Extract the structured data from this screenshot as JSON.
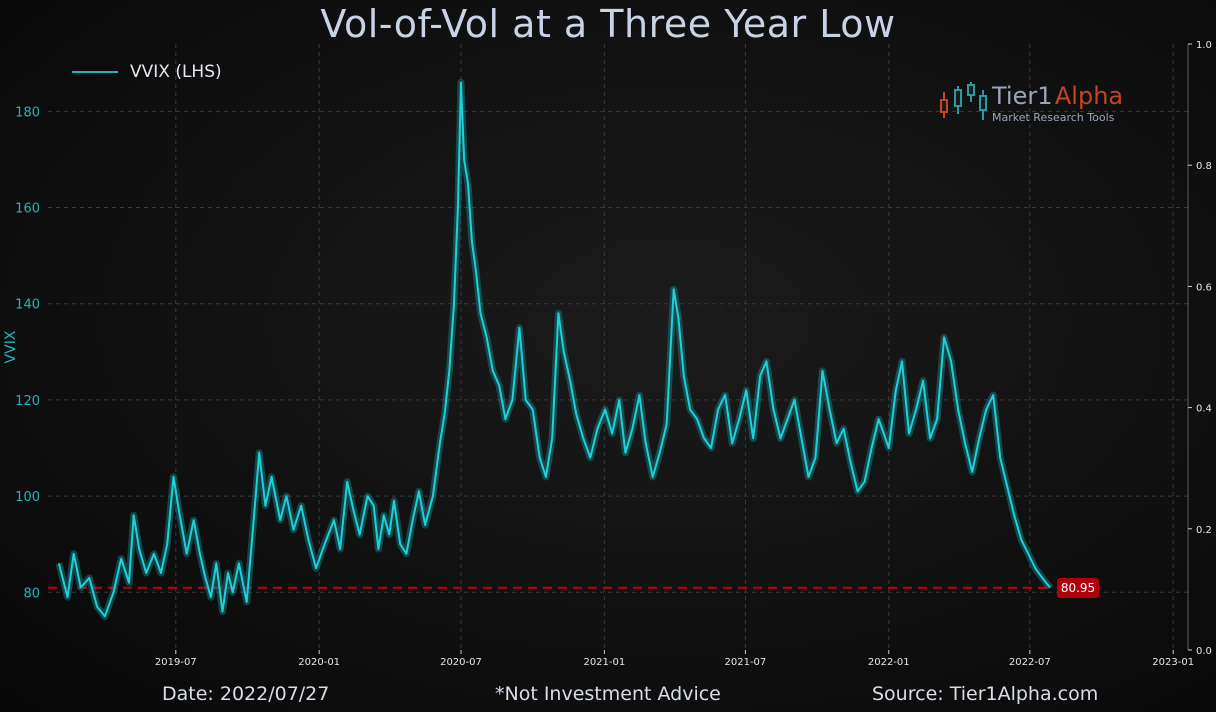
{
  "title": "Vol-of-Vol at a Three Year Low",
  "footer": {
    "date": "Date: 2022/07/27",
    "disclaimer": "*Not Investment Advice",
    "source": "Source: Tier1Alpha.com"
  },
  "logo": {
    "name_part1": "Tier1",
    "name_part2": "Alpha",
    "tagline": "Market  Research Tools"
  },
  "colors": {
    "line": "#1fd0d9",
    "glow": "#138a90",
    "axis_left": "#23b5bd",
    "threshold": "#c0000c",
    "badge": "#b0000b",
    "title": "#c8d3e6"
  },
  "chart_data": {
    "type": "line",
    "title": "Vol-of-Vol at a Three Year Low",
    "ylabel": "VVIX",
    "ylim": [
      68,
      194
    ],
    "right_ylim": [
      0.0,
      1.0
    ],
    "right_yticks": [
      "0.0",
      "0.2",
      "0.4",
      "0.6",
      "0.8",
      "1.0"
    ],
    "yticks": [
      80,
      100,
      120,
      140,
      160,
      180
    ],
    "xlim": [
      "2019-01-18",
      "2023-01-20"
    ],
    "xticks": [
      "2019-07",
      "2020-01",
      "2020-07",
      "2021-01",
      "2021-07",
      "2022-01",
      "2022-07",
      "2023-01"
    ],
    "grid": true,
    "legend": "top-left",
    "series": [
      {
        "name": "VVIX (LHS)",
        "points": [
          [
            "2019-02-01",
            86
          ],
          [
            "2019-02-12",
            79
          ],
          [
            "2019-02-20",
            88
          ],
          [
            "2019-03-01",
            81
          ],
          [
            "2019-03-12",
            83
          ],
          [
            "2019-03-22",
            77
          ],
          [
            "2019-04-01",
            75
          ],
          [
            "2019-04-12",
            80
          ],
          [
            "2019-04-22",
            87
          ],
          [
            "2019-05-02",
            82
          ],
          [
            "2019-05-08",
            96
          ],
          [
            "2019-05-15",
            89
          ],
          [
            "2019-05-24",
            84
          ],
          [
            "2019-06-03",
            88
          ],
          [
            "2019-06-12",
            84
          ],
          [
            "2019-06-20",
            90
          ],
          [
            "2019-06-28",
            104
          ],
          [
            "2019-07-05",
            97
          ],
          [
            "2019-07-15",
            88
          ],
          [
            "2019-07-24",
            95
          ],
          [
            "2019-08-01",
            88
          ],
          [
            "2019-08-08",
            83
          ],
          [
            "2019-08-15",
            79
          ],
          [
            "2019-08-22",
            86
          ],
          [
            "2019-08-30",
            76
          ],
          [
            "2019-09-06",
            84
          ],
          [
            "2019-09-12",
            80
          ],
          [
            "2019-09-20",
            86
          ],
          [
            "2019-09-30",
            78
          ],
          [
            "2019-10-08",
            93
          ],
          [
            "2019-10-16",
            109
          ],
          [
            "2019-10-24",
            98
          ],
          [
            "2019-11-01",
            104
          ],
          [
            "2019-11-12",
            95
          ],
          [
            "2019-11-20",
            100
          ],
          [
            "2019-11-29",
            93
          ],
          [
            "2019-12-09",
            98
          ],
          [
            "2019-12-18",
            91
          ],
          [
            "2019-12-28",
            85
          ],
          [
            "2020-01-08",
            90
          ],
          [
            "2020-01-20",
            95
          ],
          [
            "2020-01-28",
            89
          ],
          [
            "2020-02-06",
            103
          ],
          [
            "2020-02-14",
            97
          ],
          [
            "2020-02-22",
            92
          ],
          [
            "2020-03-03",
            100
          ],
          [
            "2020-03-11",
            98
          ],
          [
            "2020-03-17",
            89
          ],
          [
            "2020-03-24",
            96
          ],
          [
            "2020-03-31",
            92
          ],
          [
            "2020-04-06",
            99
          ],
          [
            "2020-04-14",
            90
          ],
          [
            "2020-04-22",
            88
          ],
          [
            "2020-04-30",
            95
          ],
          [
            "2020-05-08",
            101
          ],
          [
            "2020-05-16",
            94
          ],
          [
            "2020-05-26",
            100
          ],
          [
            "2020-06-04",
            111
          ],
          [
            "2020-06-10",
            117
          ],
          [
            "2020-06-16",
            126
          ],
          [
            "2020-06-22",
            140
          ],
          [
            "2020-06-27",
            160
          ],
          [
            "2020-07-01",
            186
          ],
          [
            "2020-07-05",
            170
          ],
          [
            "2020-07-10",
            165
          ],
          [
            "2020-07-15",
            153
          ],
          [
            "2020-07-20",
            147
          ],
          [
            "2020-07-26",
            138
          ],
          [
            "2020-08-03",
            133
          ],
          [
            "2020-08-11",
            126
          ],
          [
            "2020-08-19",
            123
          ],
          [
            "2020-08-27",
            116
          ],
          [
            "2020-09-05",
            120
          ],
          [
            "2020-09-14",
            135
          ],
          [
            "2020-09-22",
            120
          ],
          [
            "2020-10-01",
            118
          ],
          [
            "2020-10-10",
            108
          ],
          [
            "2020-10-18",
            104
          ],
          [
            "2020-10-26",
            112
          ],
          [
            "2020-11-03",
            138
          ],
          [
            "2020-11-10",
            130
          ],
          [
            "2020-11-18",
            124
          ],
          [
            "2020-11-26",
            117
          ],
          [
            "2020-12-05",
            112
          ],
          [
            "2020-12-14",
            108
          ],
          [
            "2020-12-23",
            114
          ],
          [
            "2021-01-02",
            118
          ],
          [
            "2021-01-11",
            113
          ],
          [
            "2021-01-20",
            120
          ],
          [
            "2021-01-28",
            109
          ],
          [
            "2021-02-06",
            114
          ],
          [
            "2021-02-15",
            121
          ],
          [
            "2021-02-23",
            111
          ],
          [
            "2021-03-04",
            104
          ],
          [
            "2021-03-13",
            109
          ],
          [
            "2021-03-22",
            115
          ],
          [
            "2021-03-31",
            143
          ],
          [
            "2021-04-06",
            137
          ],
          [
            "2021-04-13",
            125
          ],
          [
            "2021-04-21",
            118
          ],
          [
            "2021-04-30",
            116
          ],
          [
            "2021-05-09",
            112
          ],
          [
            "2021-05-18",
            110
          ],
          [
            "2021-05-27",
            118
          ],
          [
            "2021-06-05",
            121
          ],
          [
            "2021-06-14",
            111
          ],
          [
            "2021-06-23",
            116
          ],
          [
            "2021-07-02",
            122
          ],
          [
            "2021-07-11",
            112
          ],
          [
            "2021-07-20",
            125
          ],
          [
            "2021-07-28",
            128
          ],
          [
            "2021-08-06",
            118
          ],
          [
            "2021-08-15",
            112
          ],
          [
            "2021-08-24",
            116
          ],
          [
            "2021-09-02",
            120
          ],
          [
            "2021-09-11",
            112
          ],
          [
            "2021-09-20",
            104
          ],
          [
            "2021-09-29",
            108
          ],
          [
            "2021-10-08",
            126
          ],
          [
            "2021-10-17",
            118
          ],
          [
            "2021-10-26",
            111
          ],
          [
            "2021-11-04",
            114
          ],
          [
            "2021-11-13",
            107
          ],
          [
            "2021-11-22",
            101
          ],
          [
            "2021-12-01",
            103
          ],
          [
            "2021-12-10",
            110
          ],
          [
            "2021-12-19",
            116
          ],
          [
            "2022-01-01",
            110
          ],
          [
            "2022-01-10",
            122
          ],
          [
            "2022-01-18",
            128
          ],
          [
            "2022-01-27",
            113
          ],
          [
            "2022-02-05",
            118
          ],
          [
            "2022-02-14",
            124
          ],
          [
            "2022-02-23",
            112
          ],
          [
            "2022-03-04",
            116
          ],
          [
            "2022-03-13",
            133
          ],
          [
            "2022-03-22",
            128
          ],
          [
            "2022-03-31",
            118
          ],
          [
            "2022-04-09",
            111
          ],
          [
            "2022-04-18",
            105
          ],
          [
            "2022-04-27",
            112
          ],
          [
            "2022-05-06",
            118
          ],
          [
            "2022-05-15",
            121
          ],
          [
            "2022-05-24",
            108
          ],
          [
            "2022-06-02",
            102
          ],
          [
            "2022-06-11",
            96
          ],
          [
            "2022-06-20",
            91
          ],
          [
            "2022-06-29",
            88
          ],
          [
            "2022-07-08",
            85
          ],
          [
            "2022-07-17",
            83
          ],
          [
            "2022-07-27",
            80.95
          ]
        ]
      }
    ],
    "threshold": {
      "value": 80.95,
      "label": "80.95",
      "style": "dashed"
    }
  }
}
